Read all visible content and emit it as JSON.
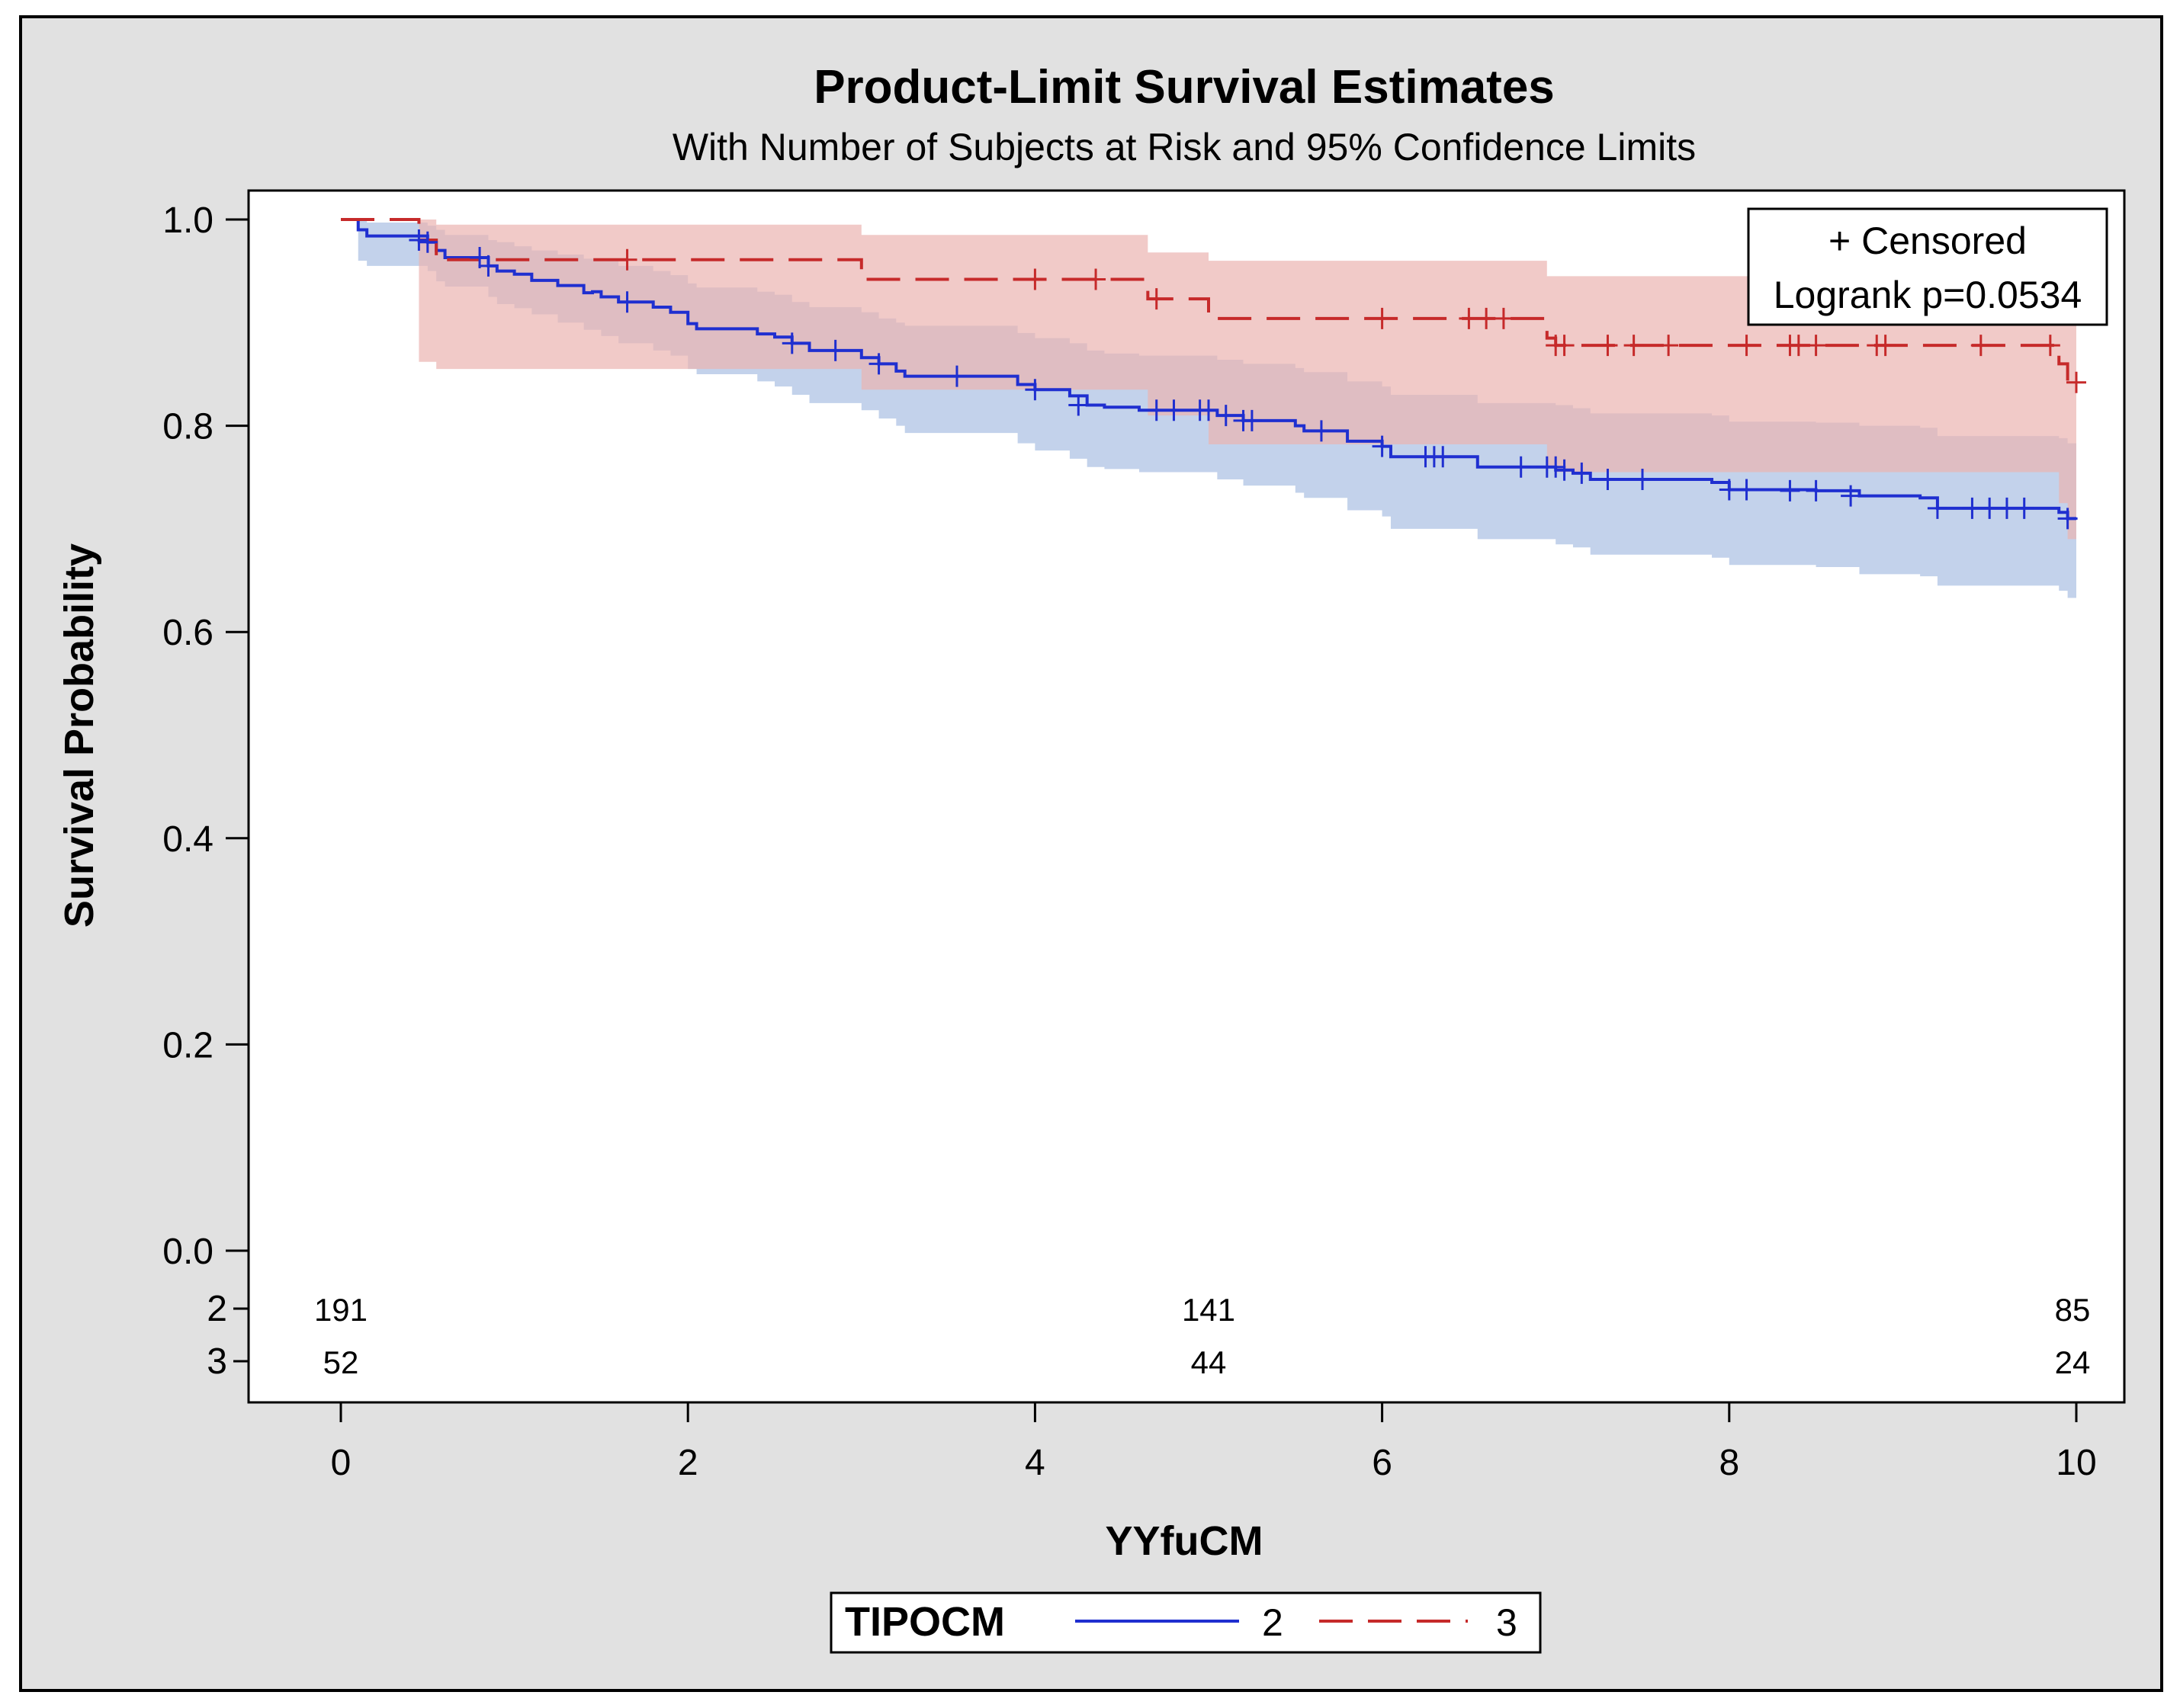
{
  "chart_data": {
    "type": "line",
    "subtype": "kaplan-meier",
    "title": "Product-Limit Survival Estimates",
    "subtitle": "With Number of Subjects at Risk and 95% Confidence Limits",
    "xlabel": "YYfuCM",
    "ylabel": "Survival Probability",
    "xlim": [
      -0.5,
      10.3
    ],
    "ylim": [
      0,
      1.0
    ],
    "xticks": [
      "0",
      "2",
      "4",
      "6",
      "8",
      "10"
    ],
    "yticks": [
      "0.0",
      "0.2",
      "0.4",
      "0.6",
      "0.8",
      "1.0"
    ],
    "inset": {
      "censored_label": "+ Censored",
      "logrank_label": "Logrank p=0.0534"
    },
    "legend": {
      "title": "TIPOCM",
      "position": "bottom-center"
    },
    "at_risk": {
      "times": [
        0,
        5,
        10
      ],
      "rows": [
        {
          "group": "2",
          "counts": [
            "191",
            "141",
            "85"
          ]
        },
        {
          "group": "3",
          "counts": [
            "52",
            "44",
            "24"
          ]
        }
      ]
    },
    "series": [
      {
        "name": "2",
        "color": "#1f2fd0",
        "band_color": "#a9bfe3",
        "dash": "solid",
        "steps": [
          [
            0,
            1.0
          ],
          [
            0.1,
            0.99
          ],
          [
            0.15,
            0.984
          ],
          [
            0.5,
            0.978
          ],
          [
            0.55,
            0.97
          ],
          [
            0.6,
            0.963
          ],
          [
            0.85,
            0.955
          ],
          [
            0.9,
            0.95
          ],
          [
            1.0,
            0.947
          ],
          [
            1.1,
            0.941
          ],
          [
            1.25,
            0.936
          ],
          [
            1.4,
            0.929
          ],
          [
            1.45,
            0.93
          ],
          [
            1.5,
            0.925
          ],
          [
            1.6,
            0.92
          ],
          [
            1.8,
            0.915
          ],
          [
            1.9,
            0.91
          ],
          [
            2.0,
            0.899
          ],
          [
            2.05,
            0.894
          ],
          [
            2.4,
            0.889
          ],
          [
            2.5,
            0.886
          ],
          [
            2.6,
            0.88
          ],
          [
            2.7,
            0.873
          ],
          [
            3.0,
            0.866
          ],
          [
            3.1,
            0.86
          ],
          [
            3.2,
            0.853
          ],
          [
            3.25,
            0.848
          ],
          [
            3.5,
            0.848
          ],
          [
            3.8,
            0.848
          ],
          [
            3.9,
            0.84
          ],
          [
            4.0,
            0.835
          ],
          [
            4.2,
            0.829
          ],
          [
            4.3,
            0.82
          ],
          [
            4.4,
            0.818
          ],
          [
            4.6,
            0.815
          ],
          [
            5.0,
            0.815
          ],
          [
            5.05,
            0.81
          ],
          [
            5.2,
            0.805
          ],
          [
            5.5,
            0.8
          ],
          [
            5.55,
            0.795
          ],
          [
            5.8,
            0.785
          ],
          [
            6.0,
            0.78
          ],
          [
            6.05,
            0.77
          ],
          [
            6.5,
            0.77
          ],
          [
            6.55,
            0.76
          ],
          [
            7.0,
            0.757
          ],
          [
            7.1,
            0.754
          ],
          [
            7.2,
            0.748
          ],
          [
            7.9,
            0.745
          ],
          [
            8.0,
            0.738
          ],
          [
            8.5,
            0.737
          ],
          [
            8.75,
            0.732
          ],
          [
            9.1,
            0.73
          ],
          [
            9.2,
            0.72
          ],
          [
            9.9,
            0.716
          ],
          [
            9.95,
            0.71
          ],
          [
            10.0,
            0.71
          ]
        ],
        "upper": [
          [
            0,
            1.0
          ],
          [
            0.1,
            1.0
          ],
          [
            0.15,
            0.997
          ],
          [
            0.5,
            0.994
          ],
          [
            0.55,
            0.99
          ],
          [
            0.6,
            0.985
          ],
          [
            0.85,
            0.98
          ],
          [
            0.9,
            0.978
          ],
          [
            1.0,
            0.974
          ],
          [
            1.1,
            0.97
          ],
          [
            1.25,
            0.966
          ],
          [
            1.4,
            0.962
          ],
          [
            1.5,
            0.96
          ],
          [
            1.6,
            0.955
          ],
          [
            1.8,
            0.95
          ],
          [
            1.9,
            0.946
          ],
          [
            2.0,
            0.938
          ],
          [
            2.05,
            0.934
          ],
          [
            2.4,
            0.93
          ],
          [
            2.5,
            0.927
          ],
          [
            2.6,
            0.92
          ],
          [
            2.7,
            0.915
          ],
          [
            3.0,
            0.91
          ],
          [
            3.1,
            0.904
          ],
          [
            3.2,
            0.9
          ],
          [
            3.25,
            0.897
          ],
          [
            3.8,
            0.897
          ],
          [
            3.9,
            0.89
          ],
          [
            4.0,
            0.885
          ],
          [
            4.2,
            0.88
          ],
          [
            4.3,
            0.873
          ],
          [
            4.4,
            0.87
          ],
          [
            4.6,
            0.868
          ],
          [
            5.0,
            0.868
          ],
          [
            5.05,
            0.864
          ],
          [
            5.2,
            0.86
          ],
          [
            5.5,
            0.856
          ],
          [
            5.55,
            0.852
          ],
          [
            5.8,
            0.843
          ],
          [
            6.0,
            0.838
          ],
          [
            6.05,
            0.83
          ],
          [
            6.55,
            0.822
          ],
          [
            7.0,
            0.82
          ],
          [
            7.1,
            0.817
          ],
          [
            7.2,
            0.812
          ],
          [
            7.9,
            0.81
          ],
          [
            8.0,
            0.804
          ],
          [
            8.5,
            0.803
          ],
          [
            8.75,
            0.8
          ],
          [
            9.1,
            0.798
          ],
          [
            9.2,
            0.79
          ],
          [
            9.9,
            0.788
          ],
          [
            9.95,
            0.783
          ],
          [
            10.0,
            0.783
          ]
        ],
        "lower": [
          [
            0,
            1.0
          ],
          [
            0.1,
            0.96
          ],
          [
            0.15,
            0.955
          ],
          [
            0.5,
            0.95
          ],
          [
            0.55,
            0.94
          ],
          [
            0.6,
            0.935
          ],
          [
            0.85,
            0.925
          ],
          [
            0.9,
            0.918
          ],
          [
            1.0,
            0.914
          ],
          [
            1.1,
            0.908
          ],
          [
            1.25,
            0.9
          ],
          [
            1.4,
            0.893
          ],
          [
            1.5,
            0.887
          ],
          [
            1.6,
            0.88
          ],
          [
            1.8,
            0.873
          ],
          [
            1.9,
            0.868
          ],
          [
            2.0,
            0.855
          ],
          [
            2.05,
            0.85
          ],
          [
            2.4,
            0.843
          ],
          [
            2.5,
            0.838
          ],
          [
            2.6,
            0.83
          ],
          [
            2.7,
            0.822
          ],
          [
            3.0,
            0.815
          ],
          [
            3.1,
            0.807
          ],
          [
            3.2,
            0.8
          ],
          [
            3.25,
            0.793
          ],
          [
            3.8,
            0.793
          ],
          [
            3.9,
            0.783
          ],
          [
            4.0,
            0.776
          ],
          [
            4.2,
            0.768
          ],
          [
            4.3,
            0.76
          ],
          [
            4.4,
            0.758
          ],
          [
            4.6,
            0.755
          ],
          [
            5.0,
            0.755
          ],
          [
            5.05,
            0.748
          ],
          [
            5.2,
            0.742
          ],
          [
            5.5,
            0.735
          ],
          [
            5.55,
            0.73
          ],
          [
            5.8,
            0.718
          ],
          [
            6.0,
            0.712
          ],
          [
            6.05,
            0.7
          ],
          [
            6.55,
            0.69
          ],
          [
            7.0,
            0.685
          ],
          [
            7.1,
            0.682
          ],
          [
            7.2,
            0.675
          ],
          [
            7.9,
            0.672
          ],
          [
            8.0,
            0.665
          ],
          [
            8.5,
            0.663
          ],
          [
            8.75,
            0.656
          ],
          [
            9.1,
            0.654
          ],
          [
            9.2,
            0.645
          ],
          [
            9.9,
            0.64
          ],
          [
            9.95,
            0.633
          ],
          [
            10.0,
            0.633
          ]
        ],
        "censored": [
          [
            0.45,
            0.98
          ],
          [
            0.5,
            0.978
          ],
          [
            0.8,
            0.963
          ],
          [
            0.85,
            0.955
          ],
          [
            1.65,
            0.92
          ],
          [
            2.6,
            0.88
          ],
          [
            2.85,
            0.873
          ],
          [
            3.1,
            0.86
          ],
          [
            3.55,
            0.848
          ],
          [
            4.0,
            0.835
          ],
          [
            4.25,
            0.82
          ],
          [
            4.7,
            0.815
          ],
          [
            4.8,
            0.815
          ],
          [
            4.95,
            0.815
          ],
          [
            5.0,
            0.815
          ],
          [
            5.1,
            0.81
          ],
          [
            5.2,
            0.805
          ],
          [
            5.25,
            0.805
          ],
          [
            5.65,
            0.795
          ],
          [
            6.0,
            0.78
          ],
          [
            6.25,
            0.77
          ],
          [
            6.3,
            0.77
          ],
          [
            6.35,
            0.77
          ],
          [
            6.8,
            0.76
          ],
          [
            6.95,
            0.76
          ],
          [
            7.0,
            0.76
          ],
          [
            7.05,
            0.757
          ],
          [
            7.15,
            0.754
          ],
          [
            7.3,
            0.748
          ],
          [
            7.5,
            0.748
          ],
          [
            8.0,
            0.738
          ],
          [
            8.1,
            0.738
          ],
          [
            8.35,
            0.737
          ],
          [
            8.5,
            0.737
          ],
          [
            8.7,
            0.732
          ],
          [
            9.2,
            0.72
          ],
          [
            9.4,
            0.72
          ],
          [
            9.5,
            0.72
          ],
          [
            9.6,
            0.72
          ],
          [
            9.7,
            0.72
          ],
          [
            9.95,
            0.71
          ]
        ]
      },
      {
        "name": "3",
        "color": "#c62a2a",
        "band_color": "#ebb4b1",
        "dash": "long-dash",
        "steps": [
          [
            0,
            1.0
          ],
          [
            0.45,
            0.98
          ],
          [
            0.55,
            0.961
          ],
          [
            2.95,
            0.961
          ],
          [
            3.0,
            0.942
          ],
          [
            4.6,
            0.942
          ],
          [
            4.65,
            0.923
          ],
          [
            5.0,
            0.904
          ],
          [
            6.9,
            0.904
          ],
          [
            6.95,
            0.885
          ],
          [
            7.0,
            0.878
          ],
          [
            9.85,
            0.878
          ],
          [
            9.9,
            0.86
          ],
          [
            9.95,
            0.842
          ],
          [
            10.0,
            0.842
          ]
        ],
        "upper": [
          [
            0,
            1.0
          ],
          [
            0.45,
            1.0
          ],
          [
            0.55,
            0.995
          ],
          [
            2.95,
            0.995
          ],
          [
            3.0,
            0.985
          ],
          [
            4.6,
            0.985
          ],
          [
            4.65,
            0.968
          ],
          [
            5.0,
            0.96
          ],
          [
            6.9,
            0.96
          ],
          [
            6.95,
            0.945
          ],
          [
            7.0,
            0.945
          ],
          [
            9.85,
            0.945
          ],
          [
            9.9,
            0.94
          ],
          [
            9.95,
            0.935
          ],
          [
            10.0,
            0.935
          ]
        ],
        "lower": [
          [
            0,
            1.0
          ],
          [
            0.45,
            0.862
          ],
          [
            0.55,
            0.855
          ],
          [
            2.95,
            0.855
          ],
          [
            3.0,
            0.835
          ],
          [
            4.6,
            0.835
          ],
          [
            4.65,
            0.81
          ],
          [
            5.0,
            0.782
          ],
          [
            6.9,
            0.782
          ],
          [
            6.95,
            0.76
          ],
          [
            7.0,
            0.755
          ],
          [
            9.85,
            0.755
          ],
          [
            9.9,
            0.725
          ],
          [
            9.95,
            0.69
          ],
          [
            10.0,
            0.69
          ]
        ],
        "censored": [
          [
            1.65,
            0.961
          ],
          [
            4.0,
            0.942
          ],
          [
            4.35,
            0.942
          ],
          [
            4.7,
            0.923
          ],
          [
            6.0,
            0.904
          ],
          [
            6.5,
            0.904
          ],
          [
            6.6,
            0.904
          ],
          [
            6.7,
            0.904
          ],
          [
            7.0,
            0.878
          ],
          [
            7.05,
            0.878
          ],
          [
            7.3,
            0.878
          ],
          [
            7.45,
            0.878
          ],
          [
            7.65,
            0.878
          ],
          [
            8.1,
            0.878
          ],
          [
            8.35,
            0.878
          ],
          [
            8.4,
            0.878
          ],
          [
            8.5,
            0.878
          ],
          [
            8.85,
            0.878
          ],
          [
            8.9,
            0.878
          ],
          [
            9.45,
            0.878
          ],
          [
            9.85,
            0.878
          ],
          [
            10.0,
            0.842
          ]
        ]
      }
    ]
  }
}
